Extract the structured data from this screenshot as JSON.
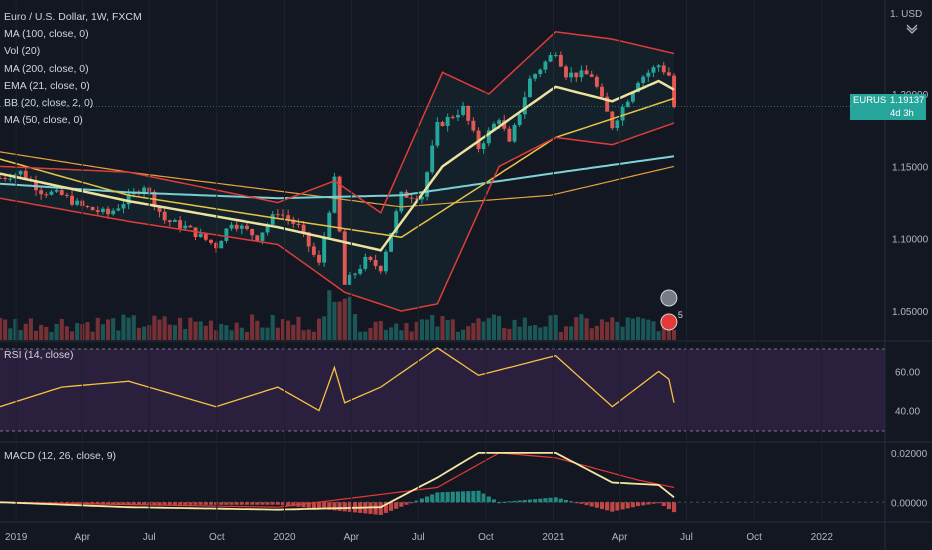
{
  "legend": {
    "symbol": "Euro / U.S. Dollar, 1W, FXCM",
    "indicators": [
      "MA (100, close, 0)",
      "Vol (20)",
      "MA (200, close, 0)",
      "EMA (21, close, 0)",
      "BB (20, close, 2, 0)",
      "MA (50, close, 0)"
    ]
  },
  "price_axis": {
    "currency": "1. USD",
    "ticks": [
      "1.20000",
      "1.15000",
      "1.10000",
      "1.05000"
    ]
  },
  "last_price": {
    "symbol": "EURUSD",
    "price": "1.19137",
    "countdown": "4d 3h"
  },
  "rsi_panel": {
    "label": "RSI (14, close)",
    "ticks": [
      "60.00",
      "40.00"
    ]
  },
  "macd_panel": {
    "label": "MACD (12, 26, close, 9)",
    "ticks": [
      "0.02000",
      "0.00000"
    ]
  },
  "time_axis": [
    "2019",
    "Apr",
    "Jul",
    "Oct",
    "2020",
    "Apr",
    "Jul",
    "Oct",
    "2021",
    "Apr",
    "Jul",
    "Oct",
    "2022"
  ],
  "markers": {
    "earnings_count": "5"
  },
  "colors": {
    "background": "#131722",
    "up": "#26a69a",
    "down": "#ef5350",
    "bb_band": "#e53935",
    "ema21": "#f9e79f",
    "ma50": "#f4c542",
    "ma200": "#e6a23c",
    "ma100": "#7fd3d8",
    "rsi": "#f5c242",
    "macd": "#f5e6a3",
    "signal": "#e53935"
  },
  "chart_data": {
    "type": "candlestick",
    "symbol": "EURUSD",
    "interval": "1W",
    "x_range": [
      "2018-12-10",
      "2022-03-28"
    ],
    "y_range": [
      1.03,
      1.265
    ],
    "anchors": [
      [
        "2018-12-10",
        1.142
      ],
      [
        "2019-01-07",
        1.146
      ],
      [
        "2019-02-04",
        1.133
      ],
      [
        "2019-03-04",
        1.13
      ],
      [
        "2019-04-01",
        1.122
      ],
      [
        "2019-05-06",
        1.117
      ],
      [
        "2019-06-03",
        1.128
      ],
      [
        "2019-06-24",
        1.137
      ],
      [
        "2019-07-22",
        1.113
      ],
      [
        "2019-08-19",
        1.108
      ],
      [
        "2019-09-30",
        1.095
      ],
      [
        "2019-10-21",
        1.112
      ],
      [
        "2019-11-25",
        1.101
      ],
      [
        "2019-12-23",
        1.119
      ],
      [
        "2020-01-20",
        1.108
      ],
      [
        "2020-02-17",
        1.082
      ],
      [
        "2020-03-09",
        1.14
      ],
      [
        "2020-03-23",
        1.068
      ],
      [
        "2020-04-20",
        1.085
      ],
      [
        "2020-05-11",
        1.08
      ],
      [
        "2020-06-08",
        1.13
      ],
      [
        "2020-07-06",
        1.13
      ],
      [
        "2020-07-27",
        1.178
      ],
      [
        "2020-08-31",
        1.19
      ],
      [
        "2020-09-21",
        1.163
      ],
      [
        "2020-10-19",
        1.184
      ],
      [
        "2020-11-02",
        1.165
      ],
      [
        "2020-11-30",
        1.21
      ],
      [
        "2021-01-04",
        1.23
      ],
      [
        "2021-01-18",
        1.214
      ],
      [
        "2021-02-22",
        1.213
      ],
      [
        "2021-03-22",
        1.178
      ],
      [
        "2021-04-26",
        1.21
      ],
      [
        "2021-05-24",
        1.22
      ],
      [
        "2021-06-07",
        1.213
      ],
      [
        "2021-06-14",
        1.191
      ]
    ],
    "ma100": [
      [
        "2018-12-10",
        1.138
      ],
      [
        "2019-06-03",
        1.132
      ],
      [
        "2019-12-23",
        1.128
      ],
      [
        "2020-06-08",
        1.13
      ],
      [
        "2020-12-28",
        1.145
      ],
      [
        "2021-06-14",
        1.157
      ]
    ],
    "ma200": [
      [
        "2018-12-10",
        1.16
      ],
      [
        "2019-06-03",
        1.146
      ],
      [
        "2019-12-23",
        1.133
      ],
      [
        "2020-06-08",
        1.122
      ],
      [
        "2020-12-28",
        1.13
      ],
      [
        "2021-06-14",
        1.15
      ]
    ],
    "ma50": [
      [
        "2018-12-10",
        1.155
      ],
      [
        "2019-06-03",
        1.13
      ],
      [
        "2019-12-23",
        1.114
      ],
      [
        "2020-06-08",
        1.101
      ],
      [
        "2020-10-05",
        1.14
      ],
      [
        "2021-01-04",
        1.17
      ],
      [
        "2021-06-14",
        1.197
      ]
    ],
    "ema21": [
      [
        "2018-12-10",
        1.145
      ],
      [
        "2019-06-03",
        1.126
      ],
      [
        "2019-12-23",
        1.108
      ],
      [
        "2020-05-11",
        1.092
      ],
      [
        "2020-08-03",
        1.15
      ],
      [
        "2020-10-26",
        1.18
      ],
      [
        "2021-01-04",
        1.205
      ],
      [
        "2021-03-22",
        1.195
      ],
      [
        "2021-05-24",
        1.209
      ],
      [
        "2021-06-14",
        1.203
      ]
    ],
    "bb_upper": [
      [
        "2018-12-10",
        1.15
      ],
      [
        "2019-06-03",
        1.146
      ],
      [
        "2019-12-23",
        1.125
      ],
      [
        "2020-03-09",
        1.14
      ],
      [
        "2020-05-11",
        1.118
      ],
      [
        "2020-08-03",
        1.215
      ],
      [
        "2020-10-05",
        1.2
      ],
      [
        "2021-01-04",
        1.243
      ],
      [
        "2021-03-22",
        1.238
      ],
      [
        "2021-06-14",
        1.228
      ]
    ],
    "bb_lower": [
      [
        "2018-12-10",
        1.128
      ],
      [
        "2019-06-03",
        1.112
      ],
      [
        "2019-12-23",
        1.096
      ],
      [
        "2020-03-23",
        1.063
      ],
      [
        "2020-06-08",
        1.05
      ],
      [
        "2020-07-27",
        1.055
      ],
      [
        "2020-10-19",
        1.15
      ],
      [
        "2021-01-04",
        1.17
      ],
      [
        "2021-03-22",
        1.165
      ],
      [
        "2021-06-14",
        1.18
      ]
    ],
    "rsi": [
      [
        "2018-12-10",
        42
      ],
      [
        "2019-03-04",
        52
      ],
      [
        "2019-06-03",
        55
      ],
      [
        "2019-09-30",
        42
      ],
      [
        "2019-12-23",
        52
      ],
      [
        "2020-02-17",
        40
      ],
      [
        "2020-03-09",
        62
      ],
      [
        "2020-03-23",
        44
      ],
      [
        "2020-05-11",
        52
      ],
      [
        "2020-07-27",
        72
      ],
      [
        "2020-09-21",
        58
      ],
      [
        "2021-01-04",
        68
      ],
      [
        "2021-03-22",
        42
      ],
      [
        "2021-05-24",
        60
      ],
      [
        "2021-06-07",
        56
      ],
      [
        "2021-06-14",
        44
      ]
    ],
    "rsi_range": [
      25,
      75
    ],
    "macd": [
      [
        "2018-12-10",
        0.0
      ],
      [
        "2019-06-03",
        -0.002
      ],
      [
        "2019-12-23",
        -0.003
      ],
      [
        "2020-05-11",
        -0.002
      ],
      [
        "2020-07-27",
        0.01
      ],
      [
        "2020-09-21",
        0.02
      ],
      [
        "2021-01-04",
        0.02
      ],
      [
        "2021-03-22",
        0.008
      ],
      [
        "2021-05-24",
        0.007
      ],
      [
        "2021-06-14",
        0.002
      ]
    ],
    "signal": [
      [
        "2018-12-10",
        0.0
      ],
      [
        "2019-12-23",
        -0.002
      ],
      [
        "2020-07-27",
        0.006
      ],
      [
        "2020-10-19",
        0.02
      ],
      [
        "2021-01-04",
        0.018
      ],
      [
        "2021-04-26",
        0.009
      ],
      [
        "2021-06-14",
        0.006
      ]
    ],
    "macd_range": [
      -0.008,
      0.024
    ]
  }
}
